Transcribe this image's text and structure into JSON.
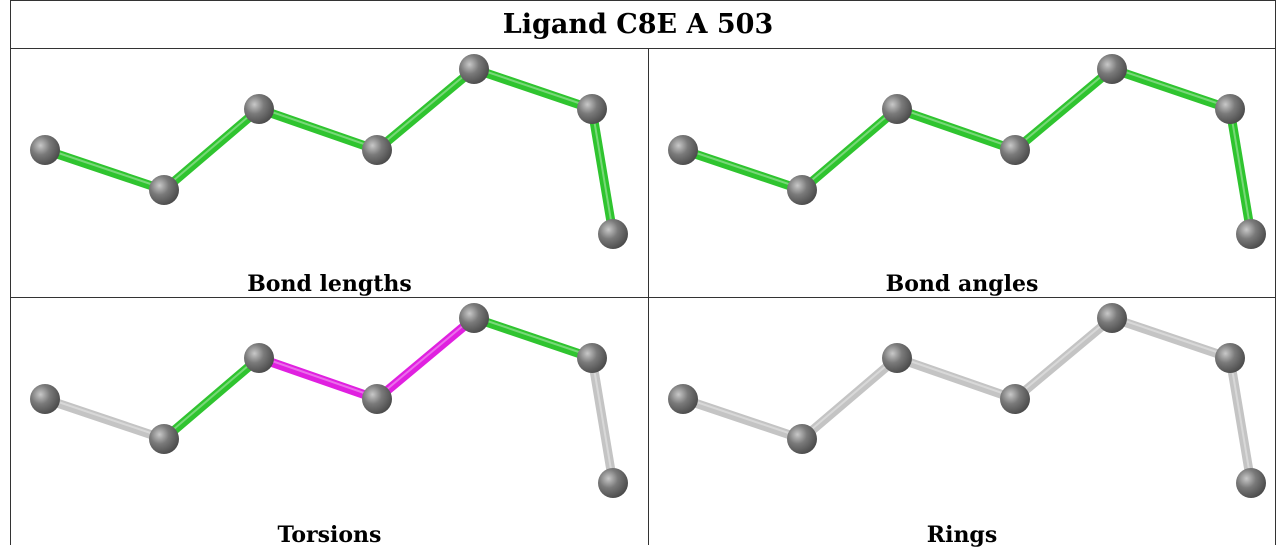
{
  "title": "Ligand C8E A 503",
  "colors": {
    "atom": "#7a7a7a",
    "atom_highlight": "#c8c8c8",
    "green": "#2fc42f",
    "magenta": "#e020e0",
    "grey_bond": "#c4c4c4",
    "border": "#333333"
  },
  "panels": [
    {
      "id": "bond-lengths",
      "label": "Bond lengths",
      "bond_colors": [
        "green",
        "green",
        "green",
        "green",
        "green",
        "green",
        "green"
      ]
    },
    {
      "id": "bond-angles",
      "label": "Bond angles",
      "bond_colors": [
        "green",
        "green",
        "green",
        "green",
        "green",
        "green",
        "green"
      ]
    },
    {
      "id": "torsions",
      "label": "Torsions",
      "bond_colors": [
        "grey_bond",
        "green",
        "magenta",
        "magenta",
        "green",
        "grey_bond",
        "grey_bond"
      ]
    },
    {
      "id": "rings",
      "label": "Rings",
      "bond_colors": [
        "grey_bond",
        "grey_bond",
        "grey_bond",
        "grey_bond",
        "grey_bond",
        "grey_bond",
        "grey_bond"
      ]
    }
  ]
}
